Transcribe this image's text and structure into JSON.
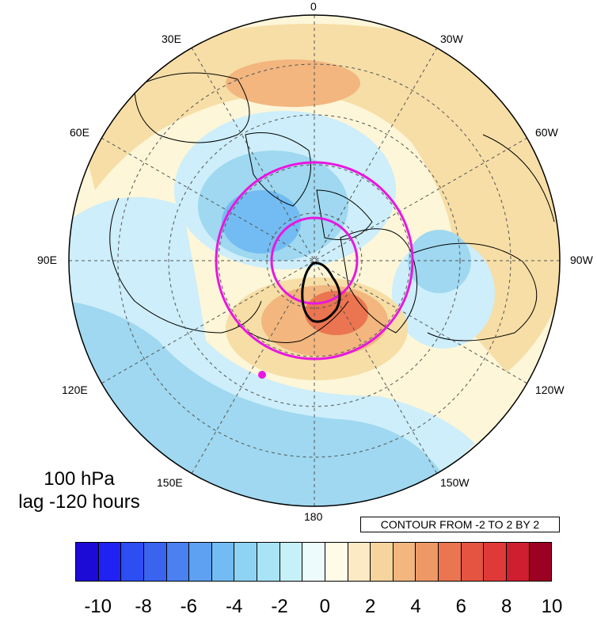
{
  "map": {
    "projection": "north-polar-stereographic",
    "longitude_labels": {
      "top": "0",
      "upper_left": "30E",
      "upper_right": "30W",
      "left_upper": "60E",
      "right_upper": "60W",
      "left": "90E",
      "right": "90W",
      "left_lower": "120E",
      "right_lower": "120W",
      "lower_left": "150E",
      "lower_right": "150W",
      "bottom": "180"
    },
    "anomaly_fill_colors": {
      "blue": "#9fd8f0",
      "light_blue": "#cdeefa",
      "pale": "#fdf6d8",
      "tan": "#f6dea6",
      "orange": "#f0a878",
      "red": "#e8764e"
    },
    "highlight_color": "#e817e0",
    "contour_color": "#000000"
  },
  "title": {
    "line1": "100 hPa",
    "line2": "lag -120 hours"
  },
  "contour_info": "CONTOUR FROM -2 TO 2 BY 2",
  "colorbar": {
    "colors": [
      "#1c0bd6",
      "#1f22f2",
      "#2d4ef2",
      "#3a63f0",
      "#4a80f0",
      "#5ea0f2",
      "#73bcf3",
      "#8fd3f4",
      "#a9e4f6",
      "#c6f1f8",
      "#eefbfd",
      "#fffbe6",
      "#fbeac4",
      "#f6d49e",
      "#f2b67e",
      "#ee9866",
      "#ea7550",
      "#e55440",
      "#e03a38",
      "#cf1e30",
      "#9c0022"
    ],
    "tick_labels": [
      "-10",
      "-8",
      "-6",
      "-4",
      "-2",
      "0",
      "2",
      "4",
      "6",
      "8",
      "10"
    ]
  }
}
